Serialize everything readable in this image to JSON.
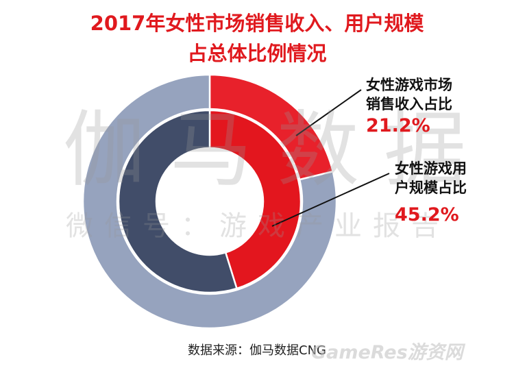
{
  "chart_data": {
    "type": "donut",
    "title": [
      "2017年女性市场销售收入、用户规模",
      "占总体比例情况"
    ],
    "rings": [
      {
        "ring": "outer",
        "name": "女性游戏市场销售收入占比",
        "label_lines": [
          "女性游戏市场",
          "销售收入占比"
        ],
        "percent_label": "21.2%",
        "value": 21.2,
        "remainder": 78.8,
        "highlight_color": "#e8212b",
        "rest_color": "#96a3be"
      },
      {
        "ring": "inner",
        "name": "女性游戏用户规模占比",
        "label_lines": [
          "女性游戏用",
          "户规模占比"
        ],
        "percent_label": "45.2%",
        "value": 45.2,
        "remainder": 54.8,
        "highlight_color": "#e3161e",
        "rest_color": "#414d69"
      }
    ]
  },
  "watermark": {
    "main": "伽马数据",
    "sub": "微信号：游戏产业报告"
  },
  "source": "数据来源：伽马数据CNG",
  "logo": "GameRes游资网"
}
